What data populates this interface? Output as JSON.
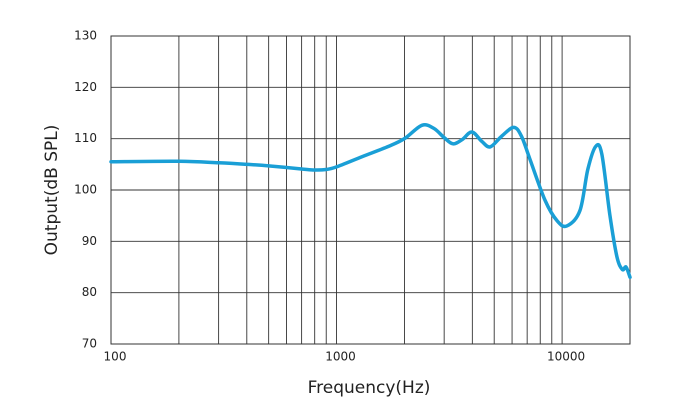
{
  "chart_data": {
    "type": "line",
    "x_label": "Frequency(Hz)",
    "y_label": "Output(dB SPL)",
    "xscale": "log",
    "xlim": [
      100,
      20000
    ],
    "ylim": [
      70,
      130
    ],
    "xticks": [
      100,
      1000,
      10000
    ],
    "x_minor_ticks": [
      200,
      300,
      400,
      500,
      600,
      700,
      800,
      900,
      2000,
      3000,
      4000,
      5000,
      6000,
      7000,
      8000,
      9000
    ],
    "yticks": [
      70,
      80,
      90,
      100,
      110,
      120,
      130
    ],
    "grid": true,
    "series": [
      {
        "name": "Output",
        "color": "#1a9fd6",
        "x": [
          100,
          200,
          300,
          400,
          500,
          700,
          800,
          900,
          1000,
          1300,
          1700,
          2000,
          2390,
          2700,
          3000,
          3280,
          3600,
          3980,
          4400,
          4800,
          5400,
          6100,
          6600,
          7200,
          8400,
          9500,
          10500,
          12000,
          13000,
          14100,
          15000,
          16300,
          17500,
          18500,
          19200,
          20000
        ],
        "values": [
          105.5,
          105.6,
          105.3,
          105.0,
          104.7,
          104.1,
          103.9,
          104.0,
          104.5,
          106.5,
          108.5,
          110.0,
          112.6,
          112.0,
          110.2,
          109.0,
          109.8,
          111.3,
          109.5,
          108.4,
          110.5,
          112.2,
          110.5,
          106.0,
          98.0,
          94.0,
          93.0,
          96.0,
          104.0,
          108.5,
          107.0,
          95.0,
          87.0,
          84.5,
          85.0,
          83.0
        ]
      }
    ]
  }
}
